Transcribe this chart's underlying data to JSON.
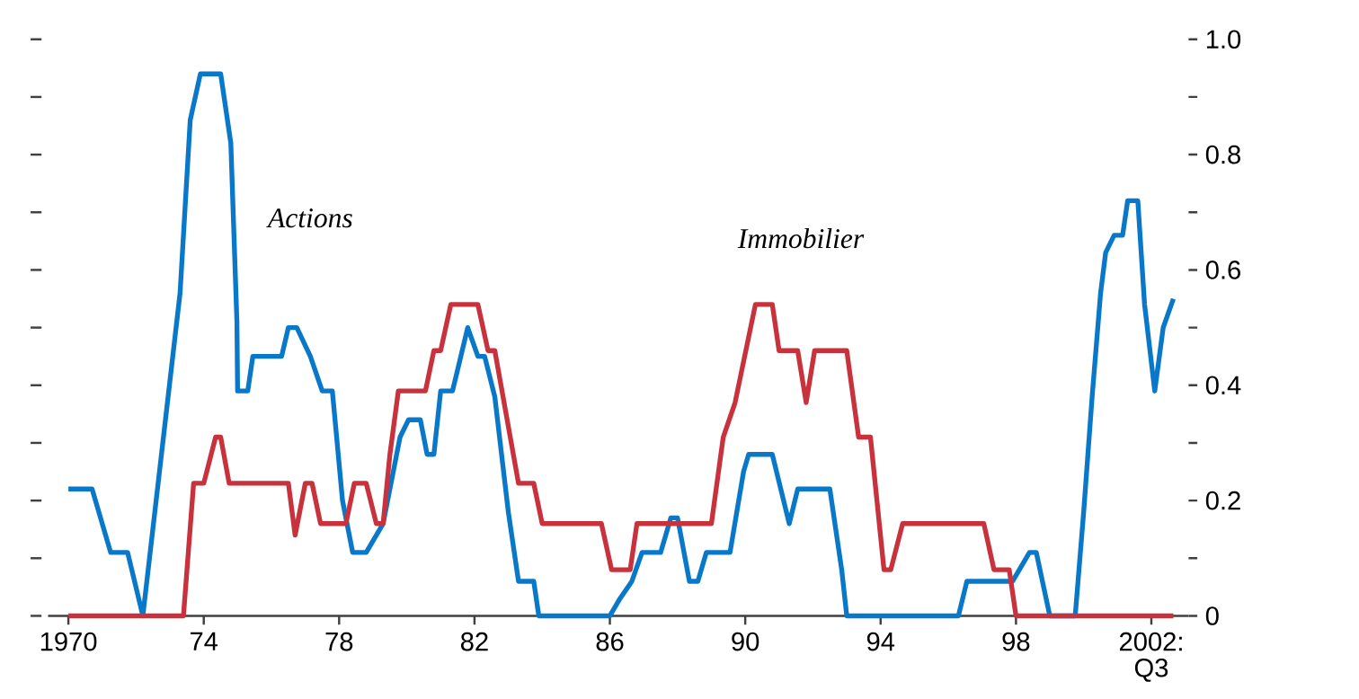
{
  "chart_data": {
    "type": "line",
    "legend": false,
    "grid": false,
    "line_style": "solid",
    "marker": "none",
    "xlim": [
      1969.4,
      2003.1
    ],
    "xticks": [
      {
        "value": 1970,
        "label": "1970"
      },
      {
        "value": 1974,
        "label": "74"
      },
      {
        "value": 1978,
        "label": "78"
      },
      {
        "value": 1982,
        "label": "82"
      },
      {
        "value": 1986,
        "label": "86"
      },
      {
        "value": 1990,
        "label": "90"
      },
      {
        "value": 1994,
        "label": "94"
      },
      {
        "value": 1998,
        "label": "98"
      },
      {
        "value": 2002,
        "label": "2002: Q3"
      }
    ],
    "ylim": [
      0,
      1.0
    ],
    "yticks": [
      0,
      {
        "value": 0.1,
        "label": null
      },
      0.2,
      {
        "value": 0.3,
        "label": null
      },
      0.4,
      {
        "value": 0.5,
        "label": null
      },
      0.6,
      {
        "value": 0.7,
        "label": null
      },
      0.8,
      {
        "value": 0.9,
        "label": null
      },
      {
        "value": 1,
        "label": "1.0"
      }
    ],
    "series": [
      {
        "name": "Actions",
        "color": "#0a78c8",
        "x": [
          1970,
          1970.7,
          1971.25,
          1971.75,
          1972.2,
          1973.3,
          1973.6,
          1973.9,
          1974.5,
          1974.8,
          1974.98,
          1975.0,
          1975.3,
          1975.45,
          1976.3,
          1976.5,
          1976.75,
          1977.15,
          1977.5,
          1977.8,
          1978.1,
          1978.4,
          1978.8,
          1979.3,
          1979.8,
          1980.05,
          1980.4,
          1980.6,
          1980.8,
          1981.0,
          1981.35,
          1981.8,
          1982.1,
          1982.3,
          1982.6,
          1983.0,
          1983.3,
          1983.75,
          1983.9,
          1986.0,
          1986.3,
          1986.65,
          1986.95,
          1987.5,
          1987.8,
          1988.0,
          1988.35,
          1988.6,
          1988.85,
          1989.55,
          1989.95,
          1990.1,
          1990.8,
          1991.3,
          1991.55,
          1992.5,
          1992.85,
          1993.0,
          1996.3,
          1996.55,
          1997.9,
          1998.4,
          1998.6,
          1999.0,
          1999.75,
          2000.0,
          2000.25,
          2000.5,
          2000.65,
          2000.9,
          2001.15,
          2001.3,
          2001.6,
          2001.8,
          2002.1,
          2002.35,
          2002.65
        ],
        "values": [
          0.22,
          0.22,
          0.11,
          0.11,
          0.0,
          0.56,
          0.86,
          0.94,
          0.94,
          0.82,
          0.51,
          0.39,
          0.39,
          0.45,
          0.45,
          0.5,
          0.5,
          0.45,
          0.39,
          0.39,
          0.2,
          0.11,
          0.11,
          0.16,
          0.31,
          0.34,
          0.34,
          0.28,
          0.28,
          0.39,
          0.39,
          0.5,
          0.45,
          0.45,
          0.38,
          0.18,
          0.06,
          0.06,
          0.0,
          0.0,
          0.03,
          0.06,
          0.11,
          0.11,
          0.17,
          0.17,
          0.06,
          0.06,
          0.11,
          0.11,
          0.25,
          0.28,
          0.28,
          0.16,
          0.22,
          0.22,
          0.08,
          0.0,
          0.0,
          0.06,
          0.06,
          0.11,
          0.11,
          0.0,
          0.0,
          0.18,
          0.38,
          0.56,
          0.63,
          0.66,
          0.66,
          0.72,
          0.72,
          0.54,
          0.39,
          0.5,
          0.55
        ]
      },
      {
        "name": "Immobilier",
        "color": "#c8323c",
        "x": [
          1970,
          1973.4,
          1973.7,
          1974.0,
          1974.35,
          1974.5,
          1974.75,
          1976.5,
          1976.7,
          1977.0,
          1977.2,
          1977.45,
          1978.2,
          1978.45,
          1978.8,
          1979.1,
          1979.3,
          1979.5,
          1979.75,
          1980.55,
          1980.8,
          1981.0,
          1981.3,
          1982.1,
          1982.4,
          1982.6,
          1983.3,
          1983.75,
          1984.0,
          1985.75,
          1986.05,
          1986.6,
          1986.8,
          1989.0,
          1989.35,
          1989.7,
          1990.3,
          1990.8,
          1991.0,
          1991.55,
          1991.8,
          1992.05,
          1993.0,
          1993.35,
          1993.7,
          1994.1,
          1994.3,
          1994.65,
          1997.05,
          1997.35,
          1997.8,
          1998.0,
          2002.65
        ],
        "values": [
          0.0,
          0.0,
          0.23,
          0.23,
          0.31,
          0.31,
          0.23,
          0.23,
          0.14,
          0.23,
          0.23,
          0.16,
          0.16,
          0.23,
          0.23,
          0.16,
          0.16,
          0.28,
          0.39,
          0.39,
          0.46,
          0.46,
          0.54,
          0.54,
          0.46,
          0.46,
          0.23,
          0.23,
          0.16,
          0.16,
          0.08,
          0.08,
          0.16,
          0.16,
          0.31,
          0.37,
          0.54,
          0.54,
          0.46,
          0.46,
          0.37,
          0.46,
          0.46,
          0.31,
          0.31,
          0.08,
          0.08,
          0.16,
          0.16,
          0.08,
          0.08,
          0.0,
          0.0
        ]
      }
    ]
  }
}
